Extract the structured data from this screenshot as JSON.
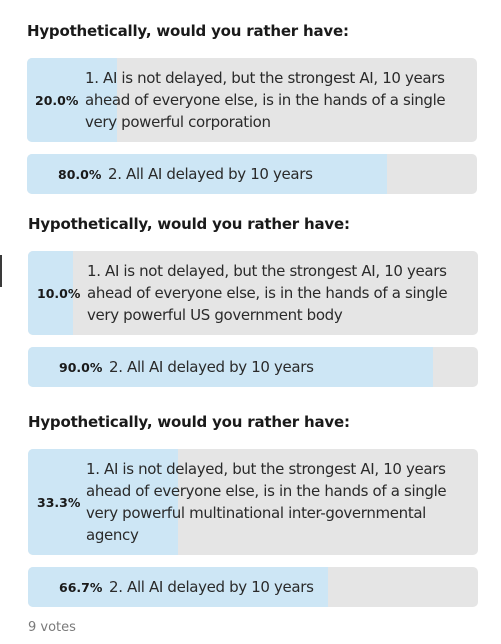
{
  "polls": [
    {
      "title": "Hypothetically, would you rather have:",
      "options": [
        {
          "percent_label": "20.0%",
          "percent": 20.0,
          "lines": [
            "1. AI is not delayed, but the strongest AI, 10 years",
            "ahead of everyone else, is in the hands of a single",
            "very powerful corporation"
          ]
        },
        {
          "percent_label": "80.0%",
          "percent": 80.0,
          "lines": [
            "2. All AI delayed by 10 years"
          ]
        }
      ]
    },
    {
      "title": "Hypothetically, would you rather have:",
      "options": [
        {
          "percent_label": "10.0%",
          "percent": 10.0,
          "lines": [
            "1. AI is not delayed, but the strongest AI, 10 years",
            "ahead of everyone else, is in the hands of a single",
            "very powerful US government body"
          ]
        },
        {
          "percent_label": "90.0%",
          "percent": 90.0,
          "lines": [
            "2. All AI delayed by 10 years"
          ]
        }
      ]
    },
    {
      "title": "Hypothetically, would you rather have:",
      "options": [
        {
          "percent_label": "33.3%",
          "percent": 33.3,
          "lines": [
            "1. AI is not delayed, but the strongest AI, 10 years",
            "ahead of everyone else, is in the hands of a single",
            "very powerful multinational inter-governmental",
            "agency"
          ]
        },
        {
          "percent_label": "66.7%",
          "percent": 66.7,
          "lines": [
            "2. All AI delayed by 10 years"
          ]
        }
      ]
    }
  ],
  "votes_label": "9 votes",
  "colors": {
    "option_background": "#e5e5e5",
    "option_fill": "#cde6f5",
    "title_text": "#1a1a1a",
    "votes_text": "#7a7a7a"
  }
}
